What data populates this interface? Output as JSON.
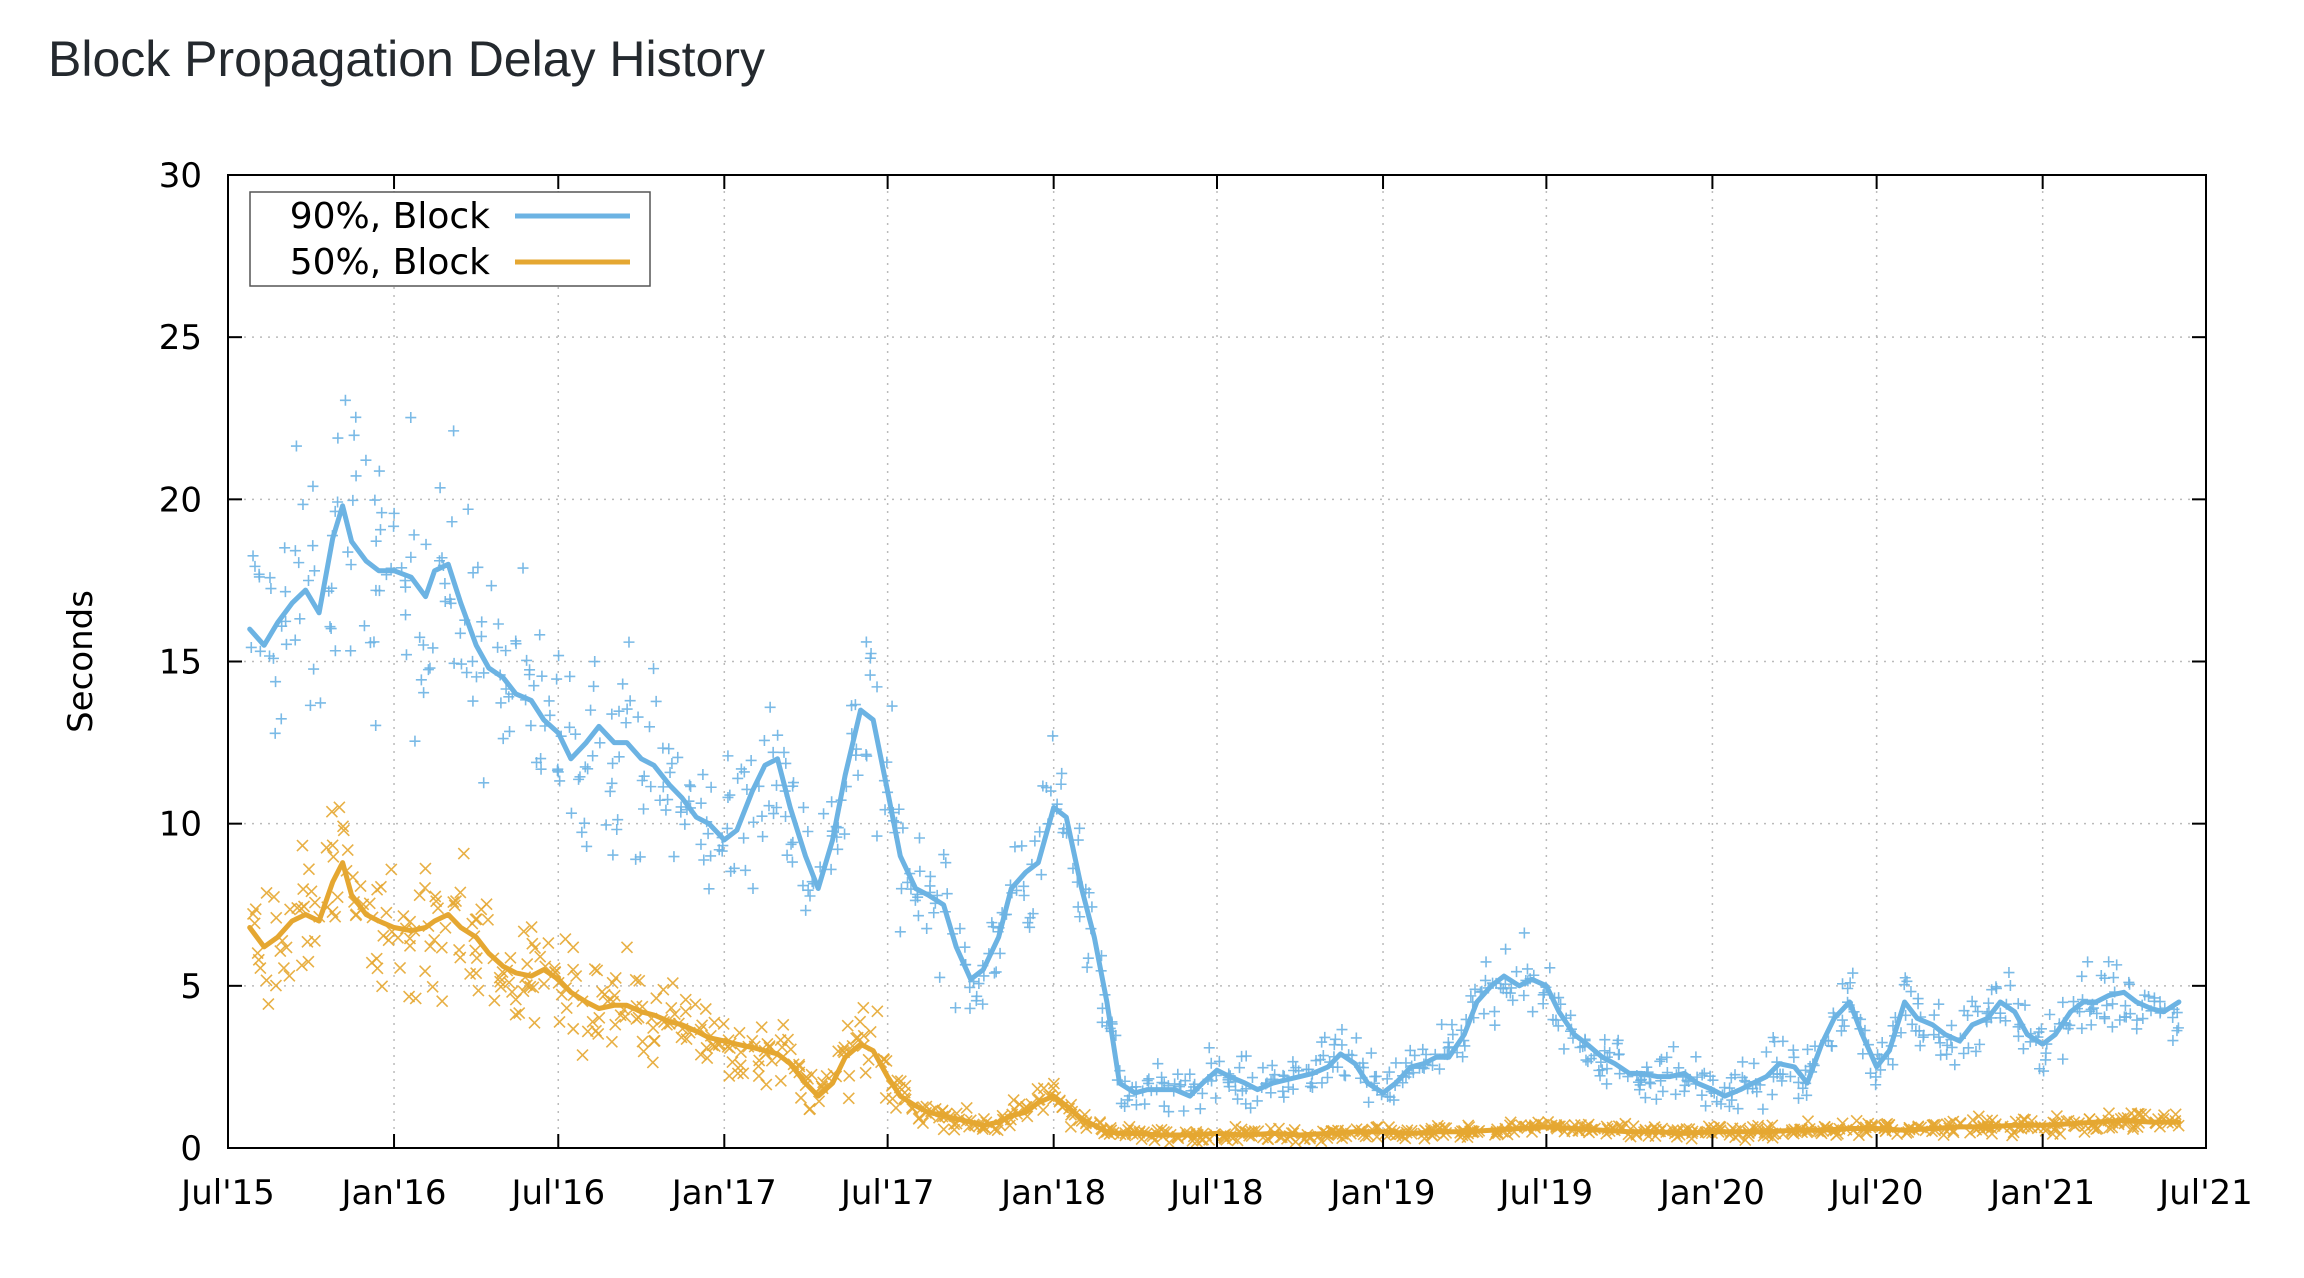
{
  "title": "Block Propagation Delay History",
  "chart_data": {
    "type": "line",
    "title": "Block Propagation Delay History",
    "xlabel": "",
    "ylabel": "Seconds",
    "x_type": "date",
    "xlim": [
      "2015-07-01",
      "2021-07-01"
    ],
    "ylim": [
      0,
      30
    ],
    "yticks": [
      0,
      5,
      10,
      15,
      20,
      25,
      30
    ],
    "xticks": [
      {
        "date": "2015-07-01",
        "label": "Jul'15"
      },
      {
        "date": "2016-01-01",
        "label": "Jan'16"
      },
      {
        "date": "2016-07-01",
        "label": "Jul'16"
      },
      {
        "date": "2017-01-01",
        "label": "Jan'17"
      },
      {
        "date": "2017-07-01",
        "label": "Jul'17"
      },
      {
        "date": "2018-01-01",
        "label": "Jan'18"
      },
      {
        "date": "2018-07-01",
        "label": "Jul'18"
      },
      {
        "date": "2019-01-01",
        "label": "Jan'19"
      },
      {
        "date": "2019-07-01",
        "label": "Jul'19"
      },
      {
        "date": "2020-01-01",
        "label": "Jan'20"
      },
      {
        "date": "2020-07-01",
        "label": "Jul'20"
      },
      {
        "date": "2021-01-01",
        "label": "Jan'21"
      },
      {
        "date": "2021-07-01",
        "label": "Jul'21"
      }
    ],
    "grid": true,
    "legend_position": "top-left",
    "series": [
      {
        "name": "90%, Block",
        "color": "#6cb3e3",
        "marker": "plus",
        "x": [
          "2015-07-25",
          "2015-08-10",
          "2015-08-25",
          "2015-09-10",
          "2015-09-25",
          "2015-10-10",
          "2015-10-25",
          "2015-11-05",
          "2015-11-15",
          "2015-12-01",
          "2015-12-15",
          "2016-01-01",
          "2016-01-20",
          "2016-02-05",
          "2016-02-15",
          "2016-03-01",
          "2016-03-15",
          "2016-04-01",
          "2016-04-15",
          "2016-05-01",
          "2016-05-15",
          "2016-06-01",
          "2016-06-15",
          "2016-07-01",
          "2016-07-15",
          "2016-08-01",
          "2016-08-15",
          "2016-09-01",
          "2016-09-15",
          "2016-10-01",
          "2016-10-15",
          "2016-11-01",
          "2016-11-15",
          "2016-12-01",
          "2016-12-15",
          "2017-01-01",
          "2017-01-15",
          "2017-02-01",
          "2017-02-15",
          "2017-03-01",
          "2017-03-15",
          "2017-04-01",
          "2017-04-15",
          "2017-05-01",
          "2017-05-15",
          "2017-06-01",
          "2017-06-15",
          "2017-07-01",
          "2017-07-15",
          "2017-08-01",
          "2017-08-15",
          "2017-09-01",
          "2017-09-15",
          "2017-10-01",
          "2017-10-15",
          "2017-11-01",
          "2017-11-15",
          "2017-12-01",
          "2017-12-15",
          "2018-01-01",
          "2018-01-15",
          "2018-02-01",
          "2018-02-15",
          "2018-03-01",
          "2018-03-15",
          "2018-04-01",
          "2018-04-15",
          "2018-05-01",
          "2018-05-15",
          "2018-06-01",
          "2018-06-15",
          "2018-07-01",
          "2018-07-15",
          "2018-08-01",
          "2018-08-15",
          "2018-09-01",
          "2018-09-15",
          "2018-10-01",
          "2018-10-15",
          "2018-11-01",
          "2018-11-15",
          "2018-12-01",
          "2018-12-15",
          "2019-01-01",
          "2019-01-15",
          "2019-02-01",
          "2019-02-15",
          "2019-03-01",
          "2019-03-15",
          "2019-04-01",
          "2019-04-15",
          "2019-05-01",
          "2019-05-15",
          "2019-06-01",
          "2019-06-15",
          "2019-07-01",
          "2019-07-15",
          "2019-08-01",
          "2019-08-15",
          "2019-09-01",
          "2019-09-15",
          "2019-10-01",
          "2019-10-15",
          "2019-11-01",
          "2019-11-15",
          "2019-12-01",
          "2019-12-15",
          "2020-01-01",
          "2020-01-15",
          "2020-02-01",
          "2020-02-15",
          "2020-03-01",
          "2020-03-15",
          "2020-04-01",
          "2020-04-15",
          "2020-05-01",
          "2020-05-15",
          "2020-06-01",
          "2020-06-15",
          "2020-07-01",
          "2020-07-15",
          "2020-08-01",
          "2020-08-15",
          "2020-09-01",
          "2020-09-15",
          "2020-10-01",
          "2020-10-15",
          "2020-11-01",
          "2020-11-15",
          "2020-12-01",
          "2020-12-15",
          "2021-01-01",
          "2021-01-15",
          "2021-02-01",
          "2021-02-15",
          "2021-03-01",
          "2021-03-15",
          "2021-04-01",
          "2021-04-15",
          "2021-05-01",
          "2021-05-15",
          "2021-06-01"
        ],
        "y": [
          16.0,
          15.5,
          16.2,
          16.8,
          17.2,
          16.5,
          18.8,
          19.8,
          18.7,
          18.1,
          17.8,
          17.8,
          17.6,
          17.0,
          17.8,
          18.0,
          16.8,
          15.5,
          14.8,
          14.5,
          14.0,
          13.8,
          13.2,
          12.8,
          12.0,
          12.5,
          13.0,
          12.5,
          12.5,
          12.0,
          11.8,
          11.2,
          10.8,
          10.2,
          10.0,
          9.5,
          9.8,
          11.0,
          11.8,
          12.0,
          10.5,
          9.0,
          8.0,
          9.5,
          11.5,
          13.5,
          13.2,
          11.0,
          9.0,
          8.0,
          7.8,
          7.5,
          6.2,
          5.2,
          5.5,
          6.5,
          8.0,
          8.5,
          8.8,
          10.5,
          10.2,
          8.0,
          6.5,
          4.5,
          2.0,
          1.7,
          1.8,
          1.8,
          1.8,
          1.6,
          2.0,
          2.4,
          2.2,
          2.0,
          1.8,
          2.0,
          2.1,
          2.2,
          2.3,
          2.5,
          2.9,
          2.6,
          2.0,
          1.7,
          2.0,
          2.5,
          2.6,
          2.8,
          2.8,
          3.5,
          4.5,
          5.0,
          5.3,
          5.0,
          5.2,
          5.0,
          4.2,
          3.5,
          3.2,
          2.8,
          2.6,
          2.3,
          2.3,
          2.2,
          2.2,
          2.3,
          2.0,
          1.8,
          1.6,
          1.8,
          2.0,
          2.2,
          2.6,
          2.5,
          2.0,
          3.2,
          4.0,
          4.5,
          3.5,
          2.5,
          3.0,
          4.5,
          4.0,
          3.8,
          3.5,
          3.3,
          3.8,
          4.0,
          4.5,
          4.2,
          3.5,
          3.2,
          3.5,
          4.2,
          4.5,
          4.5,
          4.7,
          4.8,
          4.5,
          4.3,
          4.2,
          4.5
        ]
      },
      {
        "name": "50%, Block",
        "color": "#e5a731",
        "marker": "cross",
        "x": [
          "2015-07-25",
          "2015-08-10",
          "2015-08-25",
          "2015-09-10",
          "2015-09-25",
          "2015-10-10",
          "2015-10-25",
          "2015-11-05",
          "2015-11-15",
          "2015-12-01",
          "2015-12-15",
          "2016-01-01",
          "2016-01-20",
          "2016-02-05",
          "2016-02-15",
          "2016-03-01",
          "2016-03-15",
          "2016-04-01",
          "2016-04-15",
          "2016-05-01",
          "2016-05-15",
          "2016-06-01",
          "2016-06-15",
          "2016-07-01",
          "2016-07-15",
          "2016-08-01",
          "2016-08-15",
          "2016-09-01",
          "2016-09-15",
          "2016-10-01",
          "2016-10-15",
          "2016-11-01",
          "2016-11-15",
          "2016-12-01",
          "2016-12-15",
          "2017-01-01",
          "2017-01-15",
          "2017-02-01",
          "2017-02-15",
          "2017-03-01",
          "2017-03-15",
          "2017-04-01",
          "2017-04-15",
          "2017-05-01",
          "2017-05-15",
          "2017-06-01",
          "2017-06-15",
          "2017-07-01",
          "2017-07-15",
          "2017-08-01",
          "2017-08-15",
          "2017-09-01",
          "2017-09-15",
          "2017-10-01",
          "2017-10-15",
          "2017-11-01",
          "2017-11-15",
          "2017-12-01",
          "2017-12-15",
          "2018-01-01",
          "2018-01-15",
          "2018-02-01",
          "2018-02-15",
          "2018-03-01",
          "2018-03-15",
          "2018-04-01",
          "2018-05-01",
          "2018-06-01",
          "2018-07-01",
          "2018-08-01",
          "2018-09-01",
          "2018-10-01",
          "2018-11-01",
          "2018-12-01",
          "2019-01-01",
          "2019-02-01",
          "2019-03-01",
          "2019-04-01",
          "2019-05-01",
          "2019-06-01",
          "2019-07-01",
          "2019-08-01",
          "2019-09-01",
          "2019-10-01",
          "2019-11-01",
          "2019-12-01",
          "2020-01-01",
          "2020-02-01",
          "2020-03-01",
          "2020-04-01",
          "2020-05-01",
          "2020-06-01",
          "2020-07-01",
          "2020-08-01",
          "2020-09-01",
          "2020-10-01",
          "2020-11-01",
          "2020-12-01",
          "2021-01-01",
          "2021-02-01",
          "2021-03-01",
          "2021-04-01",
          "2021-05-01",
          "2021-06-01"
        ],
        "y": [
          6.8,
          6.2,
          6.5,
          7.0,
          7.2,
          7.0,
          8.2,
          8.8,
          7.8,
          7.2,
          7.0,
          6.8,
          6.7,
          6.8,
          7.0,
          7.2,
          6.8,
          6.5,
          6.0,
          5.6,
          5.4,
          5.3,
          5.5,
          5.2,
          4.8,
          4.5,
          4.3,
          4.4,
          4.4,
          4.2,
          4.1,
          3.9,
          3.8,
          3.6,
          3.4,
          3.3,
          3.2,
          3.1,
          3.0,
          2.9,
          2.6,
          2.0,
          1.6,
          2.0,
          2.8,
          3.2,
          3.0,
          2.2,
          1.6,
          1.3,
          1.1,
          1.0,
          0.9,
          0.8,
          0.7,
          0.8,
          1.0,
          1.1,
          1.4,
          1.6,
          1.3,
          0.9,
          0.7,
          0.5,
          0.45,
          0.45,
          0.4,
          0.4,
          0.45,
          0.4,
          0.45,
          0.4,
          0.45,
          0.5,
          0.5,
          0.45,
          0.5,
          0.5,
          0.55,
          0.6,
          0.65,
          0.6,
          0.55,
          0.5,
          0.5,
          0.45,
          0.5,
          0.5,
          0.5,
          0.55,
          0.55,
          0.6,
          0.6,
          0.55,
          0.6,
          0.65,
          0.65,
          0.7,
          0.7,
          0.75,
          0.8,
          0.85,
          0.8,
          0.8
        ]
      }
    ]
  }
}
